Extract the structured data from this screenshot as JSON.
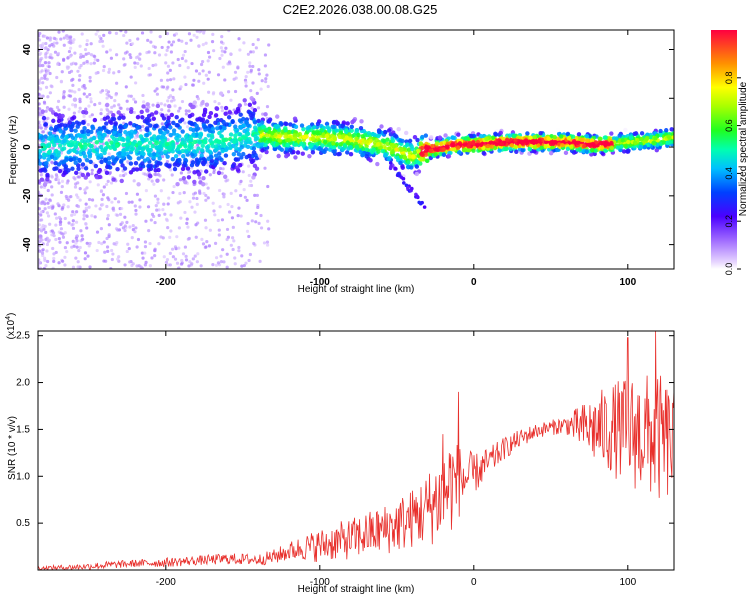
{
  "title": "C2E2.2026.038.00.08.G25",
  "chart_data": [
    {
      "type": "heatmap",
      "xlabel": "Height of straight line (km)",
      "ylabel": "Frequency (Hz)",
      "xlim": [
        -283,
        130
      ],
      "ylim": [
        -50,
        48
      ],
      "xticks": [
        -200,
        -100,
        0,
        100
      ],
      "yticks": [
        -40,
        -20,
        0,
        20,
        40
      ],
      "colorbar": {
        "label": "Normalized spectral amplitude",
        "range": [
          0,
          1
        ],
        "ticks": [
          0.0,
          0.2,
          0.4,
          0.6,
          0.8
        ],
        "tick_labels": [
          "0.0",
          "0.2",
          "0.4",
          "0.6",
          "0.8"
        ]
      },
      "ridge": {
        "x": [
          -283,
          -240,
          -200,
          -170,
          -140,
          -120,
          -100,
          -80,
          -60,
          -50,
          -40,
          -35,
          -30,
          -20,
          -10,
          0,
          20,
          40,
          60,
          80,
          100,
          120,
          130
        ],
        "frequency": [
          0,
          1,
          1,
          2,
          5,
          4,
          4,
          3,
          1,
          -1,
          -4,
          -2,
          -1,
          0,
          1,
          1,
          2,
          2,
          2,
          1,
          2,
          3,
          4
        ]
      },
      "peak_amplitude_range_km": [
        -35,
        90
      ]
    },
    {
      "type": "line",
      "xlabel": "Height of straight line (km)",
      "ylabel": "SNR (10 * v/v)",
      "y_multiplier": "(x10^4)",
      "y_multiplier_base": "(x10",
      "y_multiplier_exp": "4",
      "y_multiplier_close": ")",
      "xlim": [
        -283,
        130
      ],
      "ylim": [
        0,
        2.55
      ],
      "xticks": [
        -200,
        -100,
        0,
        100
      ],
      "yticks": [
        0.5,
        1.0,
        1.5,
        2.0,
        2.5
      ],
      "ytick_labels": [
        "0.5",
        "1.0",
        "1.5",
        "2.0",
        "2.5"
      ],
      "series": [
        {
          "color": "#e8302c",
          "x": [
            -283,
            -260,
            -240,
            -220,
            -200,
            -180,
            -160,
            -140,
            -130,
            -120,
            -110,
            -100,
            -90,
            -80,
            -70,
            -60,
            -50,
            -40,
            -30,
            -20,
            -15,
            -10,
            -5,
            0,
            10,
            20,
            30,
            40,
            50,
            60,
            70,
            80,
            90,
            100,
            110,
            120,
            130
          ],
          "y": [
            0.02,
            0.03,
            0.05,
            0.07,
            0.08,
            0.1,
            0.12,
            0.11,
            0.14,
            0.2,
            0.24,
            0.26,
            0.3,
            0.33,
            0.38,
            0.42,
            0.48,
            0.55,
            0.65,
            0.8,
            0.92,
            0.95,
            0.98,
            1.02,
            1.15,
            1.3,
            1.4,
            1.48,
            1.52,
            1.55,
            1.52,
            1.5,
            1.5,
            1.48,
            1.45,
            1.4,
            1.35
          ],
          "noise": [
            0.02,
            0.03,
            0.04,
            0.04,
            0.05,
            0.05,
            0.06,
            0.06,
            0.08,
            0.1,
            0.14,
            0.18,
            0.2,
            0.22,
            0.24,
            0.26,
            0.3,
            0.32,
            0.4,
            0.5,
            0.55,
            0.4,
            0.32,
            0.22,
            0.16,
            0.12,
            0.1,
            0.08,
            0.08,
            0.1,
            0.25,
            0.4,
            0.5,
            0.6,
            0.65,
            0.7,
            0.6
          ]
        }
      ],
      "spikes": [
        {
          "x": -20,
          "y": 1.45
        },
        {
          "x": -10,
          "y": 1.9
        },
        {
          "x": 100,
          "y": 2.48
        },
        {
          "x": 118,
          "y": 2.55
        }
      ]
    }
  ]
}
